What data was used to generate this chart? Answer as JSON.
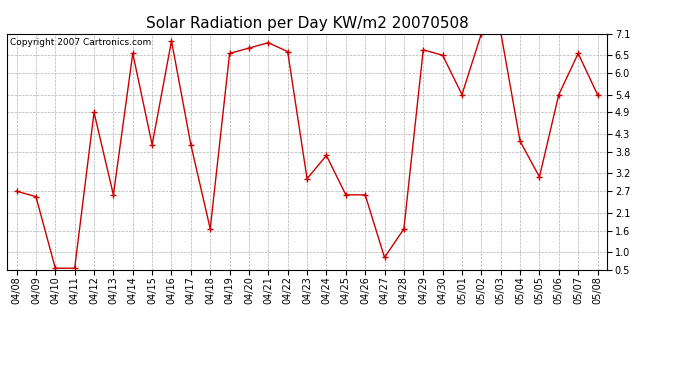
{
  "title": "Solar Radiation per Day KW/m2 20070508",
  "copyright": "Copyright 2007 Cartronics.com",
  "dates": [
    "04/08",
    "04/09",
    "04/10",
    "04/11",
    "04/12",
    "04/13",
    "04/14",
    "04/15",
    "04/16",
    "04/17",
    "04/18",
    "04/19",
    "04/20",
    "04/21",
    "04/22",
    "04/23",
    "04/24",
    "04/25",
    "04/26",
    "04/27",
    "04/28",
    "04/29",
    "04/30",
    "05/01",
    "05/02",
    "05/03",
    "05/04",
    "05/05",
    "05/06",
    "05/07",
    "05/08"
  ],
  "values": [
    2.7,
    2.55,
    0.55,
    0.55,
    4.9,
    2.6,
    6.55,
    4.0,
    6.9,
    4.0,
    1.65,
    6.55,
    6.7,
    6.85,
    6.6,
    3.05,
    3.7,
    2.6,
    2.6,
    0.85,
    1.65,
    6.65,
    6.5,
    5.4,
    7.1,
    7.15,
    4.1,
    3.1,
    5.4,
    6.55,
    5.4
  ],
  "line_color": "#cc0000",
  "marker": "+",
  "marker_color": "#cc0000",
  "background_color": "#ffffff",
  "plot_bg_color": "#ffffff",
  "grid_color": "#b0b0b0",
  "ylim": [
    0.5,
    7.1
  ],
  "yticks": [
    0.5,
    1.0,
    1.6,
    2.1,
    2.7,
    3.2,
    3.8,
    4.3,
    4.9,
    5.4,
    6.0,
    6.5,
    7.1
  ],
  "title_fontsize": 11,
  "tick_fontsize": 7,
  "copyright_fontsize": 6.5
}
